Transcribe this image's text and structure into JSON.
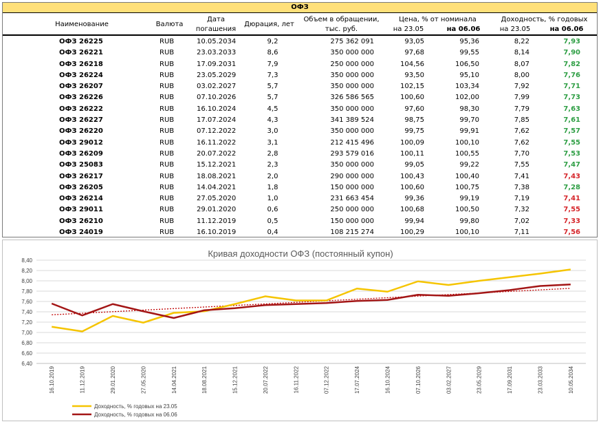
{
  "table": {
    "title": "ОФЗ",
    "headers": {
      "name": "Наименование",
      "currency": "Валюта",
      "maturity_l1": "Дата",
      "maturity_l2": "погашения",
      "duration": "Дюрация, лет",
      "volume_l1": "Объем в обращении,",
      "volume_l2": "тыс. руб.",
      "price": "Цена, % от номинала",
      "price_d1": "на 23.05",
      "price_d2": "на 06.06",
      "yield": "Доходность, % годовых",
      "yield_d1": "на 23.05",
      "yield_d2": "на 06.06"
    },
    "rows": [
      {
        "name": "ОФЗ 26225",
        "currency": "RUB",
        "maturity": "10.05.2034",
        "duration": "9,2",
        "volume": "275 362 091",
        "price1": "93,05",
        "price2": "95,36",
        "yield1": "8,22",
        "yield2": "7,93",
        "color": "#2e9e44"
      },
      {
        "name": "ОФЗ 26221",
        "currency": "RUB",
        "maturity": "23.03.2033",
        "duration": "8,6",
        "volume": "350 000 000",
        "price1": "97,68",
        "price2": "99,55",
        "yield1": "8,14",
        "yield2": "7,90",
        "color": "#2e9e44"
      },
      {
        "name": "ОФЗ 26218",
        "currency": "RUB",
        "maturity": "17.09.2031",
        "duration": "7,9",
        "volume": "250 000 000",
        "price1": "104,56",
        "price2": "106,50",
        "yield1": "8,07",
        "yield2": "7,82",
        "color": "#2e9e44"
      },
      {
        "name": "ОФЗ 26224",
        "currency": "RUB",
        "maturity": "23.05.2029",
        "duration": "7,3",
        "volume": "350 000 000",
        "price1": "93,50",
        "price2": "95,10",
        "yield1": "8,00",
        "yield2": "7,76",
        "color": "#2e9e44"
      },
      {
        "name": "ОФЗ 26207",
        "currency": "RUB",
        "maturity": "03.02.2027",
        "duration": "5,7",
        "volume": "350 000 000",
        "price1": "102,15",
        "price2": "103,34",
        "yield1": "7,92",
        "yield2": "7,71",
        "color": "#2e9e44"
      },
      {
        "name": "ОФЗ 26226",
        "currency": "RUB",
        "maturity": "07.10.2026",
        "duration": "5,7",
        "volume": "326 586 565",
        "price1": "100,60",
        "price2": "102,00",
        "yield1": "7,99",
        "yield2": "7,73",
        "color": "#2e9e44"
      },
      {
        "name": "ОФЗ 26222",
        "currency": "RUB",
        "maturity": "16.10.2024",
        "duration": "4,5",
        "volume": "350 000 000",
        "price1": "97,60",
        "price2": "98,30",
        "yield1": "7,79",
        "yield2": "7,63",
        "color": "#2e9e44"
      },
      {
        "name": "ОФЗ 26227",
        "currency": "RUB",
        "maturity": "17.07.2024",
        "duration": "4,3",
        "volume": "341 389 524",
        "price1": "98,75",
        "price2": "99,70",
        "yield1": "7,85",
        "yield2": "7,61",
        "color": "#2e9e44"
      },
      {
        "name": "ОФЗ 26220",
        "currency": "RUB",
        "maturity": "07.12.2022",
        "duration": "3,0",
        "volume": "350 000 000",
        "price1": "99,75",
        "price2": "99,91",
        "yield1": "7,62",
        "yield2": "7,57",
        "color": "#2e9e44"
      },
      {
        "name": "ОФЗ 29012",
        "currency": "RUB",
        "maturity": "16.11.2022",
        "duration": "3,1",
        "volume": "212 415 496",
        "price1": "100,09",
        "price2": "100,10",
        "yield1": "7,62",
        "yield2": "7,55",
        "color": "#2e9e44"
      },
      {
        "name": "ОФЗ 26209",
        "currency": "RUB",
        "maturity": "20.07.2022",
        "duration": "2,8",
        "volume": "293 579 016",
        "price1": "100,11",
        "price2": "100,55",
        "yield1": "7,70",
        "yield2": "7,53",
        "color": "#2e9e44"
      },
      {
        "name": "ОФЗ 25083",
        "currency": "RUB",
        "maturity": "15.12.2021",
        "duration": "2,3",
        "volume": "350 000 000",
        "price1": "99,05",
        "price2": "99,22",
        "yield1": "7,55",
        "yield2": "7,47",
        "color": "#2e9e44"
      },
      {
        "name": "ОФЗ 26217",
        "currency": "RUB",
        "maturity": "18.08.2021",
        "duration": "2,0",
        "volume": "290 000 000",
        "price1": "100,43",
        "price2": "100,40",
        "yield1": "7,41",
        "yield2": "7,43",
        "color": "#d6262b"
      },
      {
        "name": "ОФЗ 26205",
        "currency": "RUB",
        "maturity": "14.04.2021",
        "duration": "1,8",
        "volume": "150 000 000",
        "price1": "100,60",
        "price2": "100,75",
        "yield1": "7,38",
        "yield2": "7,28",
        "color": "#2e9e44"
      },
      {
        "name": "ОФЗ 26214",
        "currency": "RUB",
        "maturity": "27.05.2020",
        "duration": "1,0",
        "volume": "231 663 454",
        "price1": "99,36",
        "price2": "99,19",
        "yield1": "7,19",
        "yield2": "7,41",
        "color": "#d6262b"
      },
      {
        "name": "ОФЗ 29011",
        "currency": "RUB",
        "maturity": "29.01.2020",
        "duration": "0,6",
        "volume": "250 000 000",
        "price1": "100,68",
        "price2": "100,50",
        "yield1": "7,32",
        "yield2": "7,55",
        "color": "#d6262b"
      },
      {
        "name": "ОФЗ 26210",
        "currency": "RUB",
        "maturity": "11.12.2019",
        "duration": "0,5",
        "volume": "150 000 000",
        "price1": "99,94",
        "price2": "99,80",
        "yield1": "7,02",
        "yield2": "7,33",
        "color": "#d6262b"
      },
      {
        "name": "ОФЗ 24019",
        "currency": "RUB",
        "maturity": "16.10.2019",
        "duration": "0,4",
        "volume": "108 215 274",
        "price1": "100,29",
        "price2": "100,10",
        "yield1": "7,11",
        "yield2": "7,56",
        "color": "#d6262b"
      }
    ]
  },
  "chart_data": {
    "type": "line",
    "title": "Кривая доходности ОФЗ (постоянный купон)",
    "categories": [
      "16.10.2019",
      "11.12.2019",
      "29.01.2020",
      "27.05.2020",
      "14.04.2021",
      "18.08.2021",
      "15.12.2021",
      "20.07.2022",
      "16.11.2022",
      "07.12.2022",
      "17.07.2024",
      "16.10.2024",
      "07.10.2026",
      "03.02.2027",
      "23.05.2029",
      "17.09.2031",
      "23.03.2033",
      "10.05.2034"
    ],
    "ylim": [
      6.4,
      8.4
    ],
    "yticks": [
      "6,40",
      "6,60",
      "6,80",
      "7,00",
      "7,20",
      "7,40",
      "7,60",
      "7,80",
      "8,00",
      "8,20",
      "8,40"
    ],
    "series": [
      {
        "name": "Доходность, % годовых на 23.05",
        "color": "#f5c400",
        "values": [
          7.11,
          7.02,
          7.32,
          7.19,
          7.38,
          7.41,
          7.55,
          7.7,
          7.62,
          7.62,
          7.85,
          7.79,
          7.99,
          7.92,
          8.0,
          8.07,
          8.14,
          8.22
        ]
      },
      {
        "name": "Доходность, % годовых на 06.06",
        "color": "#a31515",
        "values": [
          7.56,
          7.33,
          7.55,
          7.41,
          7.28,
          7.43,
          7.47,
          7.53,
          7.55,
          7.57,
          7.61,
          7.63,
          7.73,
          7.71,
          7.76,
          7.82,
          7.9,
          7.93
        ]
      }
    ],
    "trendline": {
      "color": "#c00000",
      "series_index": 1
    },
    "grid": true,
    "legend": "bottom-left"
  }
}
